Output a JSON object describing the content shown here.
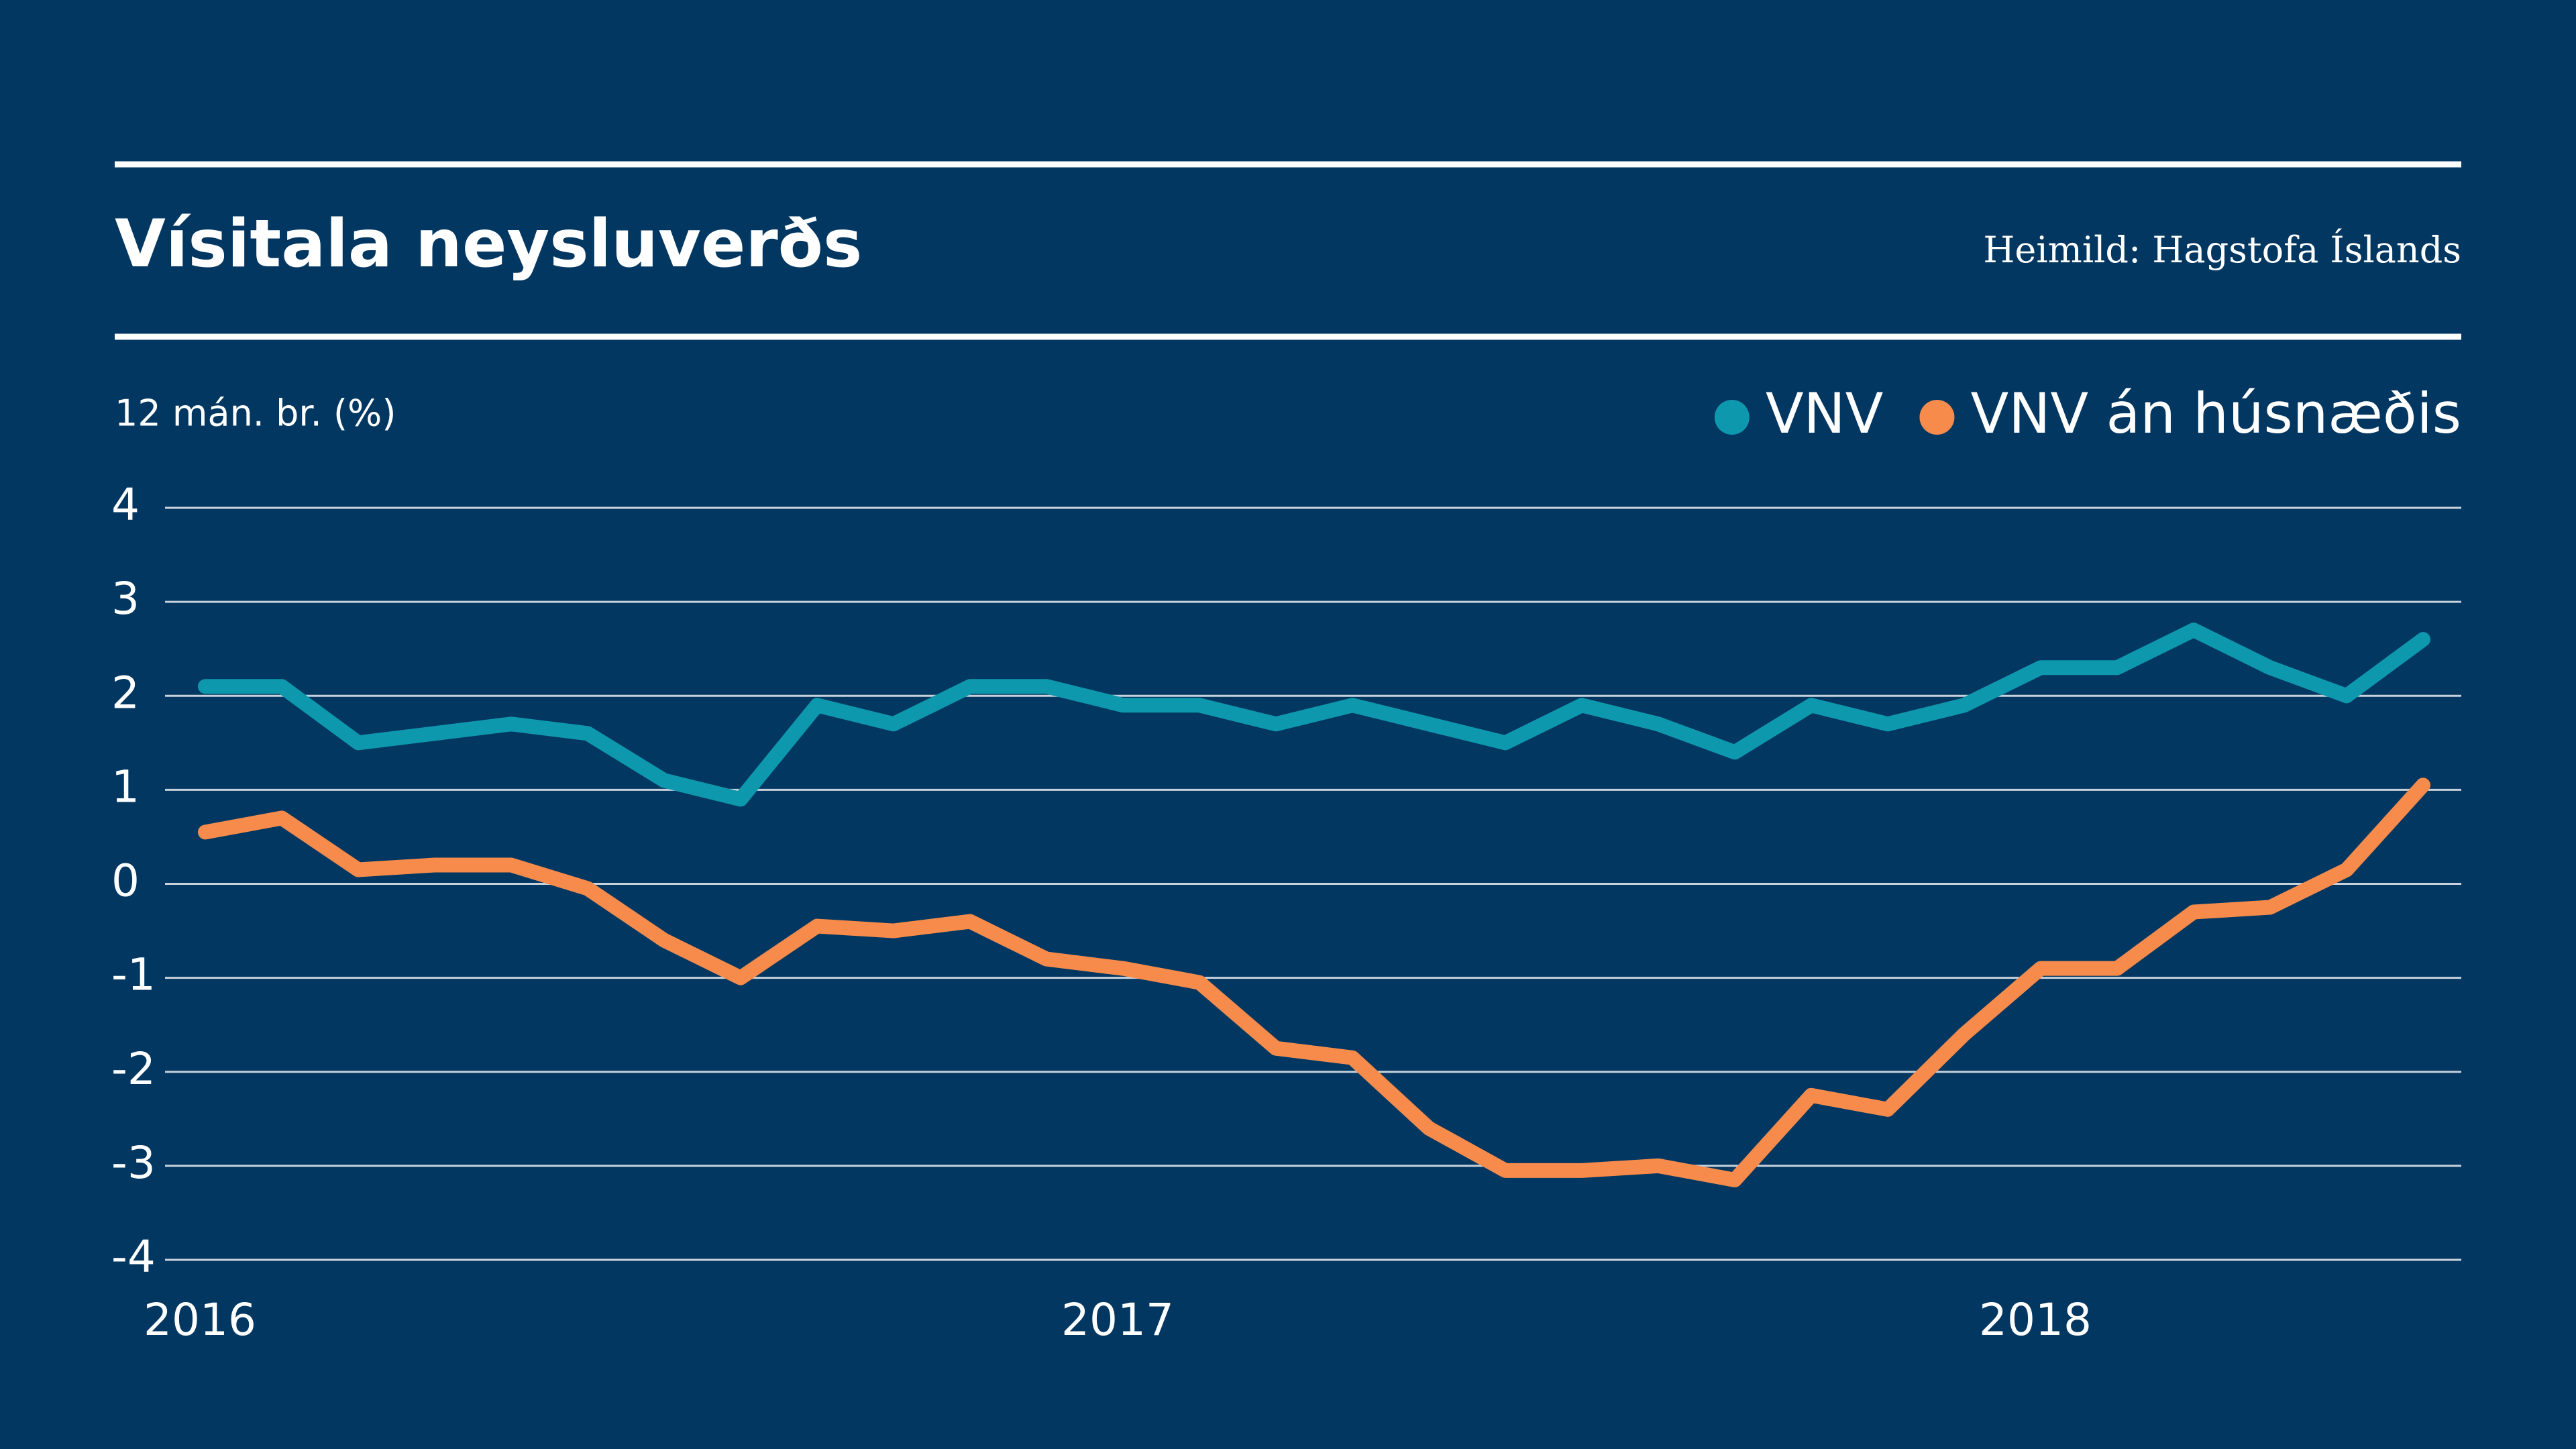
{
  "chart_data": {
    "type": "line",
    "title": "Vísitala neysluverðs",
    "source": "Heimild: Hagstofa Íslands",
    "ylabel": "12 mán. br. (%)",
    "categories": [
      "2016",
      null,
      null,
      null,
      null,
      null,
      null,
      null,
      null,
      null,
      null,
      null,
      "2017",
      null,
      null,
      null,
      null,
      null,
      null,
      null,
      null,
      null,
      null,
      null,
      "2018",
      null,
      null,
      null,
      null,
      null
    ],
    "series": [
      {
        "name": "VNV",
        "color": "#0e98ad",
        "values": [
          2.1,
          2.1,
          1.5,
          1.6,
          1.7,
          1.6,
          1.1,
          0.9,
          1.9,
          1.7,
          2.1,
          2.1,
          1.9,
          1.9,
          1.7,
          1.9,
          1.7,
          1.5,
          1.9,
          1.7,
          1.4,
          1.9,
          1.7,
          1.9,
          2.3,
          2.3,
          2.7,
          2.3,
          2.0,
          2.6
        ]
      },
      {
        "name": "VNV án húsnæðis",
        "color": "#f68b4b",
        "values": [
          0.55,
          0.7,
          0.15,
          0.2,
          0.2,
          -0.05,
          -0.6,
          -1.0,
          -0.45,
          -0.5,
          -0.4,
          -0.8,
          -0.9,
          -1.05,
          -1.75,
          -1.85,
          -2.6,
          -3.05,
          -3.05,
          -3.0,
          -3.15,
          -2.25,
          -2.4,
          -1.6,
          -0.9,
          -0.9,
          -0.3,
          -0.25,
          0.15,
          1.05
        ]
      }
    ],
    "ylim": [
      -4,
      4
    ],
    "yticks": [
      -4,
      -3,
      -2,
      -1,
      0,
      1,
      2,
      3,
      4
    ],
    "grid": true
  }
}
